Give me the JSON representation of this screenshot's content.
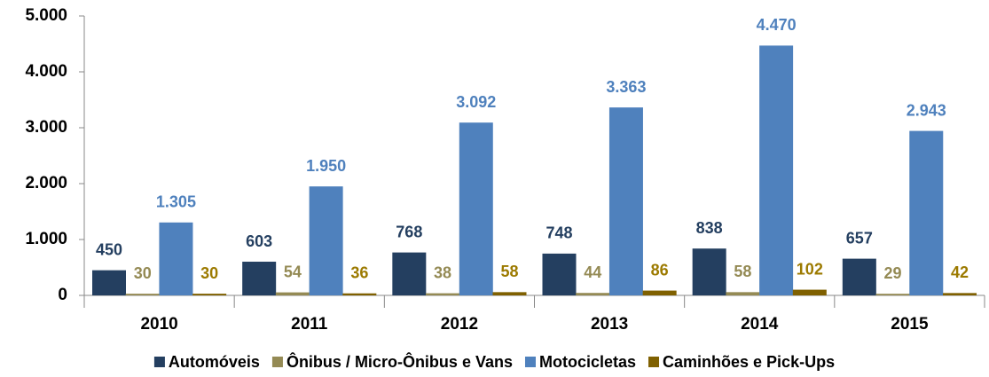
{
  "chart_data": {
    "type": "bar",
    "categories": [
      "2010",
      "2011",
      "2012",
      "2013",
      "2014",
      "2015"
    ],
    "series": [
      {
        "name": "Automóveis",
        "color": "#243f60",
        "label_color": "#243f60",
        "values": [
          450,
          603,
          768,
          748,
          838,
          657
        ]
      },
      {
        "name": "Ônibus / Micro-Ônibus e Vans",
        "color": "#948a54",
        "label_color": "#948a54",
        "values": [
          30,
          54,
          38,
          44,
          58,
          29
        ]
      },
      {
        "name": "Motocicletas",
        "color": "#4f81bd",
        "label_color": "#4f81bd",
        "values": [
          1305,
          1950,
          3092,
          3363,
          4470,
          2943
        ],
        "value_labels": [
          "1.305",
          "1.950",
          "3.092",
          "3.363",
          "4.470",
          "2.943"
        ]
      },
      {
        "name": "Caminhões e Pick-Ups",
        "color": "#7f6000",
        "label_color": "#9c7a00",
        "values": [
          30,
          36,
          58,
          86,
          102,
          42
        ]
      }
    ],
    "ylim": [
      0,
      5000
    ],
    "yticks": [
      0,
      {
        "value": 1000,
        "label": "1.000"
      },
      {
        "value": 2000,
        "label": "2.000"
      },
      {
        "value": 3000,
        "label": "3.000"
      },
      {
        "value": 4000,
        "label": "4.000"
      },
      {
        "value": 5000,
        "label": "5.000"
      }
    ],
    "legend": "bottom"
  }
}
